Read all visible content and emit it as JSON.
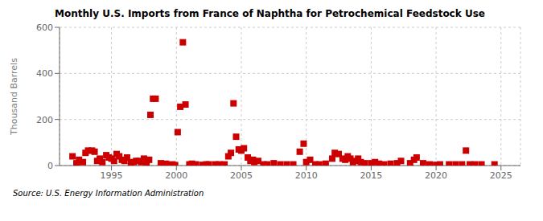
{
  "chart_data": {
    "type": "scatter",
    "title": "Monthly U.S. Imports from France of Naphtha for Petrochemical Feedstock Use",
    "ylabel": "Thousand Barrels",
    "annotations": [
      "Source: U.S. Energy Information Administration"
    ],
    "color": "#cc0000",
    "marker": "square",
    "grid": true,
    "xlim": [
      1991.0,
      2026.5
    ],
    "xticks": [
      1995,
      2000,
      2005,
      2010,
      2015,
      2020,
      2025
    ],
    "ylim": [
      0,
      600
    ],
    "yticks": [
      0,
      200,
      400,
      600
    ],
    "x": [
      1992.0,
      1992.3,
      1992.5,
      1992.8,
      1993.0,
      1993.2,
      1993.5,
      1993.7,
      1993.9,
      1994.1,
      1994.3,
      1994.6,
      1994.8,
      1995.0,
      1995.2,
      1995.4,
      1995.6,
      1995.8,
      1996.0,
      1996.2,
      1996.5,
      1996.7,
      1996.9,
      1997.1,
      1997.3,
      1997.5,
      1997.7,
      1997.9,
      1998.0,
      1998.2,
      1998.4,
      1998.8,
      1999.0,
      1999.2,
      1999.5,
      1999.7,
      1999.9,
      2000.1,
      2000.3,
      2000.5,
      2000.7,
      2001.0,
      2001.2,
      2001.5,
      2002.0,
      2002.3,
      2002.5,
      2003.0,
      2003.3,
      2003.7,
      2004.0,
      2004.2,
      2004.4,
      2004.6,
      2004.8,
      2005.0,
      2005.2,
      2005.5,
      2005.7,
      2005.9,
      2006.0,
      2006.3,
      2006.7,
      2007.0,
      2007.5,
      2008.0,
      2008.5,
      2009.0,
      2009.5,
      2009.8,
      2010.0,
      2010.3,
      2010.7,
      2011.0,
      2011.5,
      2012.0,
      2012.2,
      2012.5,
      2012.8,
      2013.0,
      2013.2,
      2013.4,
      2013.6,
      2013.8,
      2014.0,
      2014.2,
      2014.5,
      2015.0,
      2015.3,
      2015.6,
      2016.0,
      2016.5,
      2017.0,
      2017.3,
      2018.0,
      2018.3,
      2018.5,
      2019.0,
      2019.5,
      2020.0,
      2020.3,
      2021.0,
      2021.5,
      2022.0,
      2022.3,
      2022.6,
      2023.0,
      2023.5,
      2024.5
    ],
    "values": [
      40,
      10,
      25,
      15,
      55,
      65,
      65,
      60,
      20,
      30,
      15,
      45,
      35,
      30,
      20,
      50,
      40,
      25,
      20,
      35,
      10,
      15,
      20,
      20,
      15,
      30,
      10,
      25,
      220,
      290,
      290,
      10,
      5,
      8,
      3,
      5,
      2,
      145,
      255,
      535,
      265,
      5,
      8,
      5,
      3,
      5,
      5,
      5,
      5,
      5,
      40,
      55,
      270,
      125,
      70,
      65,
      75,
      35,
      20,
      25,
      15,
      20,
      5,
      5,
      10,
      5,
      5,
      5,
      60,
      95,
      15,
      25,
      5,
      5,
      8,
      30,
      55,
      50,
      30,
      25,
      40,
      30,
      15,
      20,
      30,
      15,
      10,
      10,
      15,
      8,
      5,
      8,
      10,
      20,
      10,
      25,
      35,
      10,
      5,
      3,
      5,
      5,
      5,
      5,
      65,
      5,
      5,
      5,
      5
    ]
  }
}
